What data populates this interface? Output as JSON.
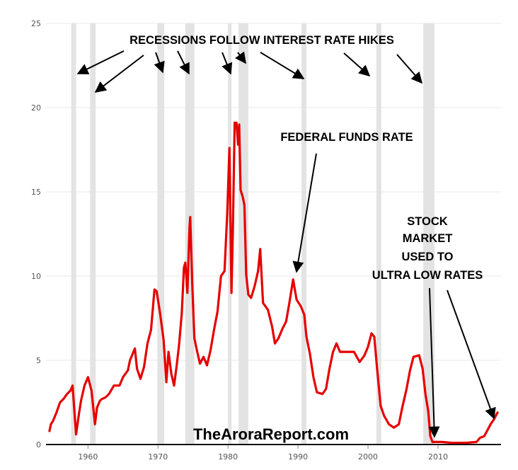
{
  "chart_data": {
    "type": "line",
    "title": "",
    "xlabel": "",
    "ylabel": "",
    "xlim": [
      1954,
      2019
    ],
    "ylim": [
      0,
      25
    ],
    "x_ticks": [
      "1960",
      "1970",
      "1980",
      "1990",
      "2000",
      "2010"
    ],
    "y_ticks": [
      "0",
      "5",
      "10",
      "15",
      "20",
      "25"
    ],
    "grid": "horizontal",
    "recessions": [
      [
        1957.6,
        1958.3
      ],
      [
        1960.3,
        1961.1
      ],
      [
        1969.9,
        1970.9
      ],
      [
        1973.9,
        1975.2
      ],
      [
        1980.0,
        1980.5
      ],
      [
        1981.5,
        1982.9
      ],
      [
        1990.5,
        1991.2
      ],
      [
        2001.2,
        2001.9
      ],
      [
        2007.9,
        2009.5
      ]
    ],
    "series": [
      {
        "color": "#e60000",
        "points": [
          [
            1954.5,
            0.8
          ],
          [
            1954.7,
            1.2
          ],
          [
            1955.0,
            1.4
          ],
          [
            1955.5,
            1.9
          ],
          [
            1956.0,
            2.5
          ],
          [
            1956.5,
            2.7
          ],
          [
            1957.0,
            3.0
          ],
          [
            1957.5,
            3.2
          ],
          [
            1957.8,
            3.5
          ],
          [
            1958.0,
            2.3
          ],
          [
            1958.3,
            0.6
          ],
          [
            1958.7,
            1.8
          ],
          [
            1959.0,
            2.6
          ],
          [
            1959.5,
            3.5
          ],
          [
            1960.0,
            4.0
          ],
          [
            1960.5,
            3.2
          ],
          [
            1960.8,
            2.0
          ],
          [
            1961.0,
            1.2
          ],
          [
            1961.3,
            2.2
          ],
          [
            1961.7,
            2.6
          ],
          [
            1962.0,
            2.7
          ],
          [
            1962.5,
            2.8
          ],
          [
            1963.0,
            3.0
          ],
          [
            1963.7,
            3.5
          ],
          [
            1964.5,
            3.5
          ],
          [
            1965.0,
            4.0
          ],
          [
            1965.7,
            4.4
          ],
          [
            1966.0,
            5.0
          ],
          [
            1966.7,
            5.7
          ],
          [
            1967.0,
            4.5
          ],
          [
            1967.5,
            3.9
          ],
          [
            1968.0,
            4.6
          ],
          [
            1968.5,
            6.0
          ],
          [
            1969.0,
            6.8
          ],
          [
            1969.5,
            9.2
          ],
          [
            1969.8,
            9.1
          ],
          [
            1970.3,
            7.8
          ],
          [
            1970.8,
            6.2
          ],
          [
            1971.2,
            3.7
          ],
          [
            1971.5,
            5.5
          ],
          [
            1971.9,
            4.2
          ],
          [
            1972.3,
            3.5
          ],
          [
            1972.7,
            4.8
          ],
          [
            1973.0,
            5.9
          ],
          [
            1973.4,
            7.8
          ],
          [
            1973.7,
            10.5
          ],
          [
            1973.9,
            10.8
          ],
          [
            1974.2,
            9.0
          ],
          [
            1974.5,
            12.9
          ],
          [
            1974.6,
            13.5
          ],
          [
            1974.9,
            9.5
          ],
          [
            1975.2,
            6.3
          ],
          [
            1975.6,
            5.5
          ],
          [
            1976.0,
            4.8
          ],
          [
            1976.5,
            5.2
          ],
          [
            1977.0,
            4.7
          ],
          [
            1977.5,
            5.6
          ],
          [
            1978.0,
            6.8
          ],
          [
            1978.5,
            7.9
          ],
          [
            1979.0,
            10.0
          ],
          [
            1979.5,
            10.3
          ],
          [
            1979.9,
            13.8
          ],
          [
            1980.2,
            17.6
          ],
          [
            1980.5,
            9.0
          ],
          [
            1980.7,
            12.8
          ],
          [
            1980.95,
            19.1
          ],
          [
            1981.2,
            19.1
          ],
          [
            1981.45,
            17.8
          ],
          [
            1981.6,
            19.0
          ],
          [
            1981.8,
            15.1
          ],
          [
            1982.1,
            14.7
          ],
          [
            1982.35,
            14.2
          ],
          [
            1982.6,
            10.1
          ],
          [
            1982.9,
            8.9
          ],
          [
            1983.3,
            8.7
          ],
          [
            1983.8,
            9.4
          ],
          [
            1984.3,
            10.3
          ],
          [
            1984.6,
            11.6
          ],
          [
            1985.0,
            8.4
          ],
          [
            1985.7,
            8.0
          ],
          [
            1986.3,
            7.0
          ],
          [
            1986.7,
            6.0
          ],
          [
            1987.2,
            6.3
          ],
          [
            1987.8,
            6.9
          ],
          [
            1988.3,
            7.3
          ],
          [
            1988.8,
            8.5
          ],
          [
            1989.3,
            9.8
          ],
          [
            1989.8,
            8.6
          ],
          [
            1990.4,
            8.2
          ],
          [
            1990.9,
            7.7
          ],
          [
            1991.2,
            6.4
          ],
          [
            1991.7,
            5.4
          ],
          [
            1992.2,
            4.0
          ],
          [
            1992.7,
            3.1
          ],
          [
            1993.5,
            3.0
          ],
          [
            1994.0,
            3.3
          ],
          [
            1994.5,
            4.5
          ],
          [
            1995.0,
            5.5
          ],
          [
            1995.5,
            6.0
          ],
          [
            1996.0,
            5.5
          ],
          [
            1997.0,
            5.5
          ],
          [
            1998.0,
            5.5
          ],
          [
            1998.8,
            4.9
          ],
          [
            1999.5,
            5.3
          ],
          [
            2000.0,
            5.8
          ],
          [
            2000.5,
            6.6
          ],
          [
            2000.9,
            6.4
          ],
          [
            2001.3,
            4.5
          ],
          [
            2001.8,
            2.3
          ],
          [
            2002.3,
            1.7
          ],
          [
            2003.0,
            1.2
          ],
          [
            2003.7,
            1.0
          ],
          [
            2004.4,
            1.2
          ],
          [
            2004.9,
            2.2
          ],
          [
            2005.5,
            3.3
          ],
          [
            2006.0,
            4.4
          ],
          [
            2006.5,
            5.2
          ],
          [
            2007.3,
            5.3
          ],
          [
            2007.8,
            4.5
          ],
          [
            2008.2,
            3.0
          ],
          [
            2008.6,
            2.0
          ],
          [
            2008.9,
            0.5
          ],
          [
            2009.2,
            0.15
          ],
          [
            2010.5,
            0.15
          ],
          [
            2012.0,
            0.1
          ],
          [
            2014.0,
            0.1
          ],
          [
            2015.5,
            0.15
          ],
          [
            2016.0,
            0.4
          ],
          [
            2016.6,
            0.5
          ],
          [
            2017.0,
            0.8
          ],
          [
            2017.5,
            1.2
          ],
          [
            2018.0,
            1.5
          ],
          [
            2018.5,
            1.9
          ]
        ]
      }
    ],
    "annotations": {
      "recessions_heading": "RECESSIONS FOLLOW INTEREST RATE HIKES",
      "fed_funds": "FEDERAL FUNDS RATE",
      "stock_market": [
        "STOCK",
        "MARKET",
        "USED TO",
        "ULTRA LOW RATES"
      ]
    },
    "watermark": "TheAroraReport.com"
  }
}
